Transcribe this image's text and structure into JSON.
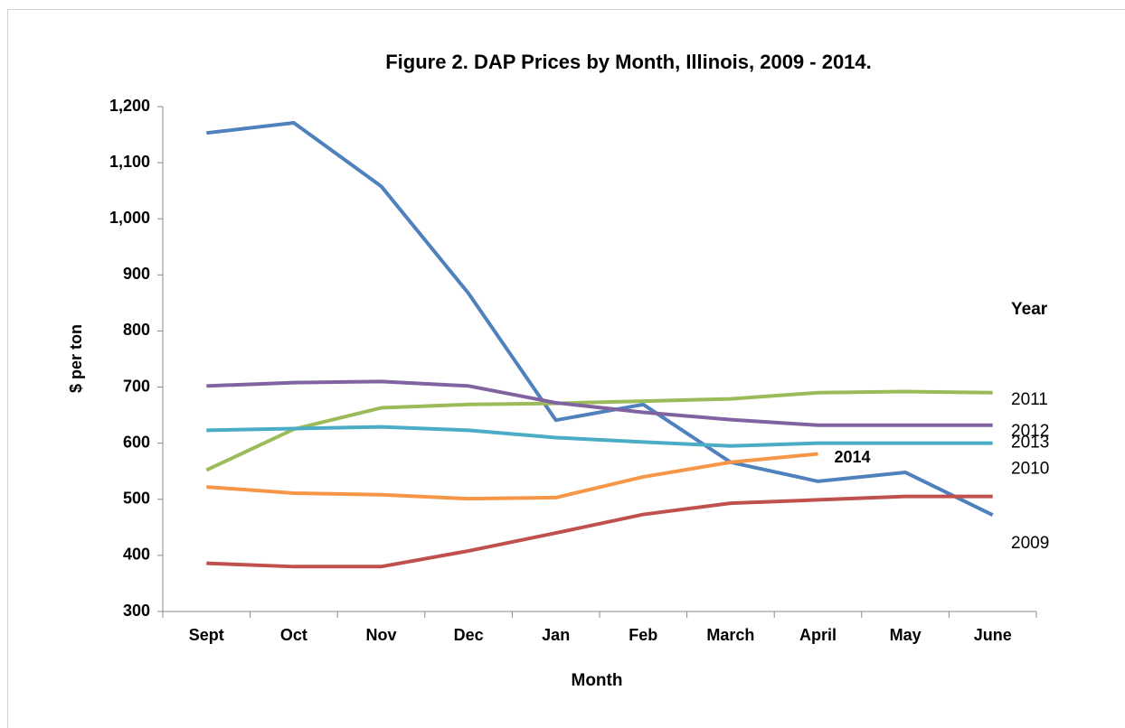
{
  "chart_data": {
    "type": "line",
    "title": "Figure 2.  DAP Prices by Month, Illinois,  2009 - 2014.",
    "y_label": "$ per ton",
    "x_label": "Month",
    "legend_title": "Year",
    "categories": [
      "Sept",
      "Oct",
      "Nov",
      "Dec",
      "Jan",
      "Feb",
      "March",
      "April",
      "May",
      "June"
    ],
    "ylim": [
      300,
      1200
    ],
    "yticks": [
      {
        "value": 300,
        "label": "300"
      },
      {
        "value": 400,
        "label": "400"
      },
      {
        "value": 500,
        "label": "500"
      },
      {
        "value": 600,
        "label": "600"
      },
      {
        "value": 700,
        "label": "700"
      },
      {
        "value": 800,
        "label": "800"
      },
      {
        "value": 900,
        "label": "900"
      },
      {
        "value": 1000,
        "label": "1,000"
      },
      {
        "value": 1100,
        "label": "1,100"
      },
      {
        "value": 1200,
        "label": "1,200"
      }
    ],
    "grid": false,
    "series": [
      {
        "name": "2009",
        "color": "#4f81bd",
        "values": [
          1153,
          1171,
          1058,
          867,
          641,
          669,
          566,
          532,
          548,
          472
        ]
      },
      {
        "name": "2010",
        "color": "#c0504d",
        "values": [
          386,
          380,
          380,
          408,
          440,
          473,
          493,
          499,
          505,
          505
        ]
      },
      {
        "name": "2011",
        "color": "#9bbb59",
        "values": [
          552,
          625,
          663,
          669,
          671,
          675,
          679,
          690,
          692,
          690
        ]
      },
      {
        "name": "2012",
        "color": "#8064a2",
        "values": [
          702,
          708,
          710,
          702,
          672,
          655,
          642,
          632,
          632,
          632
        ]
      },
      {
        "name": "2013",
        "color": "#4bacc6",
        "values": [
          623,
          626,
          629,
          623,
          610,
          602,
          595,
          600,
          600,
          600
        ]
      },
      {
        "name": "2014",
        "color": "#f79646",
        "values": [
          522,
          511,
          508,
          501,
          503,
          540,
          566,
          581,
          null,
          null
        ]
      }
    ]
  }
}
